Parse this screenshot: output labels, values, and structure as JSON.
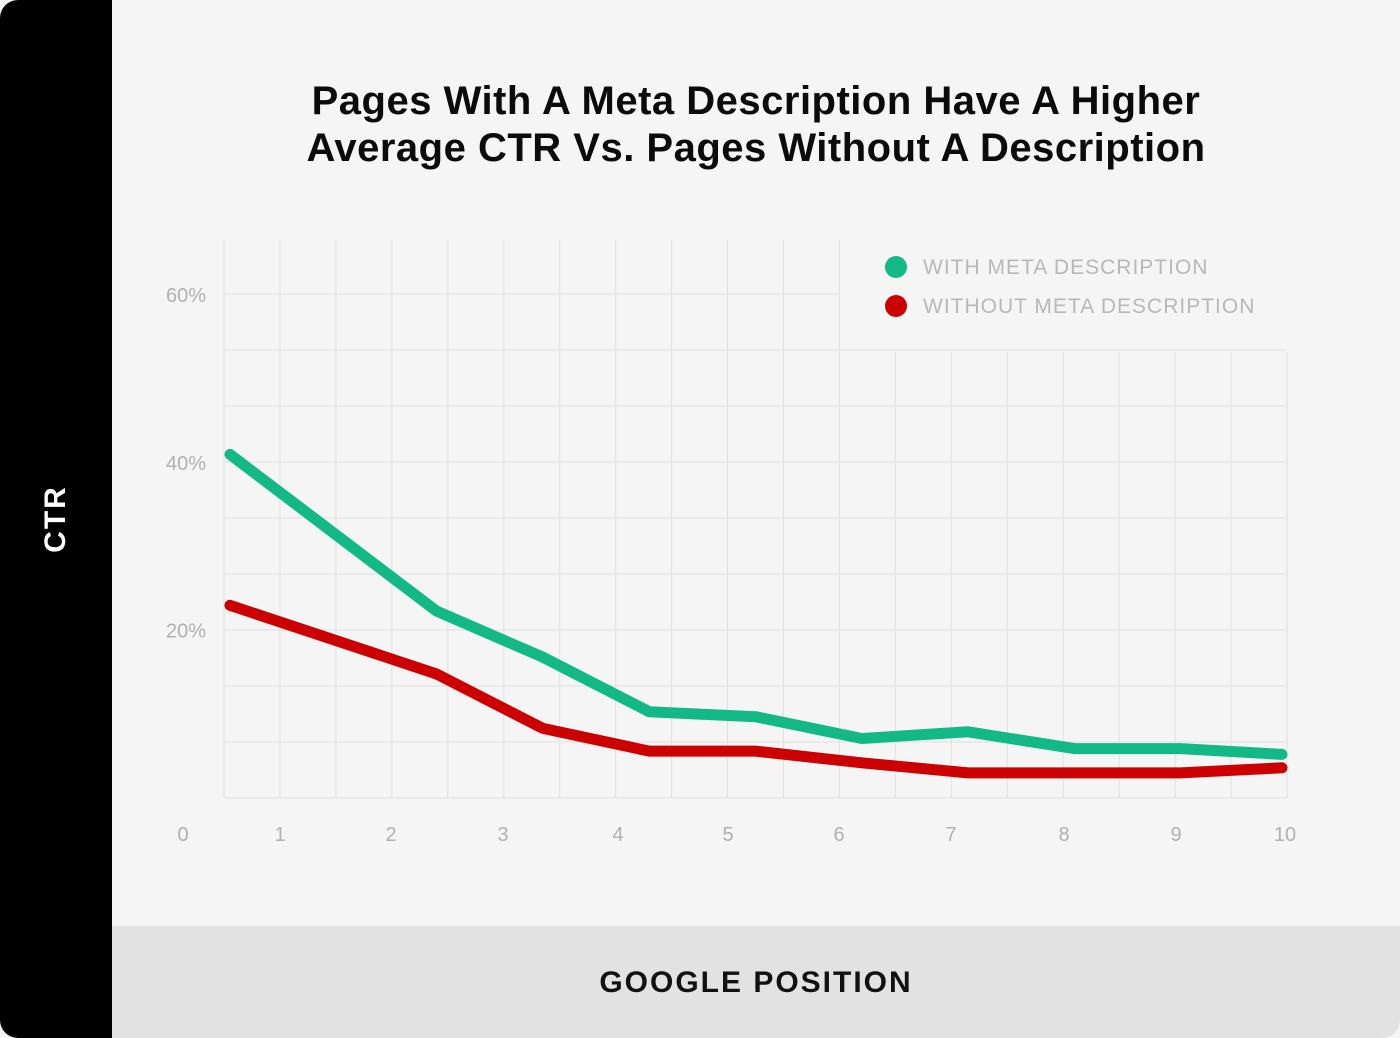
{
  "chart_data": {
    "type": "line",
    "title_lines": [
      "Pages With A Meta Description Have A Higher",
      "Average CTR Vs. Pages Without A Description"
    ],
    "xlabel": "GOOGLE POSITION",
    "ylabel": "CTR",
    "x": [
      0.5,
      2,
      3,
      4,
      5,
      6,
      7,
      8,
      9,
      10
    ],
    "x_ticks": [
      "0",
      "1",
      "2",
      "3",
      "4",
      "5",
      "6",
      "7",
      "8",
      "9",
      "10"
    ],
    "x_tick_values": [
      0,
      1,
      2,
      3,
      4,
      5,
      6,
      7,
      8,
      9,
      10
    ],
    "xlim": [
      0,
      10
    ],
    "y_ticks": [
      "20%",
      "40%",
      "60%"
    ],
    "y_tick_values": [
      20,
      40,
      60
    ],
    "ylim": [
      0,
      67
    ],
    "grid": true,
    "legend_position": "top-right",
    "series": [
      {
        "name": "WITH META DESCRIPTION",
        "color": "#12b886",
        "values": [
          41,
          22.3,
          16.8,
          10.3,
          9.7,
          7.1,
          7.9,
          5.9,
          5.9,
          5.2
        ]
      },
      {
        "name": "WITHOUT META DESCRIPTION",
        "color": "#cc0000",
        "values": [
          23,
          14.8,
          8.3,
          5.6,
          5.6,
          4.2,
          3.0,
          3.0,
          3.0,
          3.6
        ]
      }
    ]
  }
}
